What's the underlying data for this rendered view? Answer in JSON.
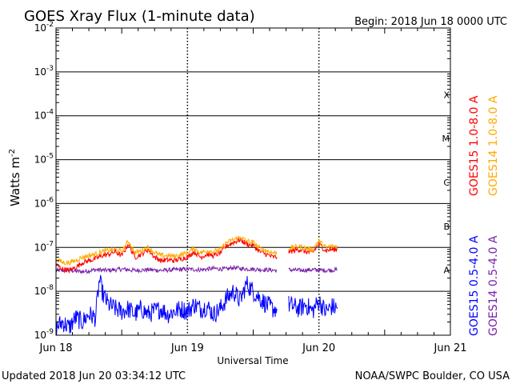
{
  "header": {
    "title": "GOES Xray Flux (1-minute data)",
    "begin": "Begin:  2018 Jun 18 0000 UTC"
  },
  "footer": {
    "updated": "Updated 2018 Jun 20 03:34:12 UTC",
    "credit": "NOAA/SWPC Boulder, CO USA"
  },
  "chart_data": {
    "type": "line",
    "title": "GOES Xray Flux (1-minute data)",
    "xlabel": "Universal Time",
    "ylabel": "Watts m",
    "ylabel_sup": "-2",
    "yscale": "log",
    "ylim": [
      1e-09,
      0.01
    ],
    "xlim": [
      0,
      3
    ],
    "x_units": "days since 2018 Jun 18 0000 UTC",
    "x_ticks": [
      {
        "x": 0,
        "label": "Jun 18"
      },
      {
        "x": 1,
        "label": "Jun 19"
      },
      {
        "x": 2,
        "label": "Jun 20"
      },
      {
        "x": 3,
        "label": "Jun 21"
      }
    ],
    "y_ticks": [
      {
        "exp": -9,
        "base": "10",
        "sup": "-9"
      },
      {
        "exp": -8,
        "base": "10",
        "sup": "-8"
      },
      {
        "exp": -7,
        "base": "10",
        "sup": "-7"
      },
      {
        "exp": -6,
        "base": "10",
        "sup": "-6"
      },
      {
        "exp": -5,
        "base": "10",
        "sup": "-5"
      },
      {
        "exp": -4,
        "base": "10",
        "sup": "-4"
      },
      {
        "exp": -3,
        "base": "10",
        "sup": "-3"
      },
      {
        "exp": -2,
        "base": "10",
        "sup": "-2"
      }
    ],
    "flare_classes": [
      {
        "label": "A",
        "exp": -8
      },
      {
        "label": "B",
        "exp": -7
      },
      {
        "label": "C",
        "exp": -6
      },
      {
        "label": "M",
        "exp": -5
      },
      {
        "label": "X",
        "exp": -4
      }
    ],
    "grid": "horizontal lines at each decade, dotted vertical lines at day boundaries",
    "legend_placement": "right, vertical",
    "series": [
      {
        "name": "GOES15 1.0-8.0 A",
        "color": "#ff0000",
        "points": [
          [
            0,
            4e-08
          ],
          [
            0.05,
            3.2e-08
          ],
          [
            0.1,
            3e-08
          ],
          [
            0.15,
            3.5e-08
          ],
          [
            0.2,
            4.5e-08
          ],
          [
            0.25,
            5e-08
          ],
          [
            0.3,
            5.5e-08
          ],
          [
            0.35,
            6.5e-08
          ],
          [
            0.4,
            7e-08
          ],
          [
            0.45,
            8e-08
          ],
          [
            0.5,
            6.5e-08
          ],
          [
            0.55,
            1.2e-07
          ],
          [
            0.6,
            6e-08
          ],
          [
            0.65,
            7e-08
          ],
          [
            0.7,
            9e-08
          ],
          [
            0.75,
            6e-08
          ],
          [
            0.8,
            5e-08
          ],
          [
            0.85,
            5.2e-08
          ],
          [
            0.9,
            5e-08
          ],
          [
            0.95,
            5.5e-08
          ],
          [
            1.0,
            6e-08
          ],
          [
            1.05,
            8e-08
          ],
          [
            1.1,
            6e-08
          ],
          [
            1.15,
            7e-08
          ],
          [
            1.2,
            6.5e-08
          ],
          [
            1.25,
            7.5e-08
          ],
          [
            1.3,
            1.1e-07
          ],
          [
            1.35,
            1.3e-07
          ],
          [
            1.4,
            1.5e-07
          ],
          [
            1.45,
            1.2e-07
          ],
          [
            1.5,
            1.1e-07
          ],
          [
            1.55,
            8e-08
          ],
          [
            1.6,
            7e-08
          ],
          [
            1.65,
            6e-08
          ],
          [
            1.68,
            6e-08
          ],
          [
            null,
            null
          ],
          [
            1.77,
            8e-08
          ],
          [
            1.85,
            9e-08
          ],
          [
            1.9,
            8e-08
          ],
          [
            1.95,
            7.5e-08
          ],
          [
            2.0,
            1.2e-07
          ],
          [
            2.05,
            8.5e-08
          ],
          [
            2.1,
            9e-08
          ],
          [
            2.14,
            9e-08
          ]
        ]
      },
      {
        "name": "GOES14 1.0-8.0 A",
        "color": "#ffaa00",
        "points": [
          [
            0,
            5.5e-08
          ],
          [
            0.05,
            4.5e-08
          ],
          [
            0.1,
            4.5e-08
          ],
          [
            0.15,
            5e-08
          ],
          [
            0.2,
            6e-08
          ],
          [
            0.25,
            6.5e-08
          ],
          [
            0.3,
            7e-08
          ],
          [
            0.35,
            8e-08
          ],
          [
            0.4,
            8.5e-08
          ],
          [
            0.45,
            9e-08
          ],
          [
            0.5,
            8e-08
          ],
          [
            0.55,
            1.4e-07
          ],
          [
            0.6,
            7.5e-08
          ],
          [
            0.65,
            8.5e-08
          ],
          [
            0.7,
            1e-07
          ],
          [
            0.75,
            7.5e-08
          ],
          [
            0.8,
            6.5e-08
          ],
          [
            0.85,
            6.5e-08
          ],
          [
            0.9,
            6.3e-08
          ],
          [
            0.95,
            6.8e-08
          ],
          [
            1.0,
            7.5e-08
          ],
          [
            1.05,
            9.5e-08
          ],
          [
            1.1,
            7.5e-08
          ],
          [
            1.15,
            8.5e-08
          ],
          [
            1.2,
            8e-08
          ],
          [
            1.25,
            9e-08
          ],
          [
            1.3,
            1.3e-07
          ],
          [
            1.35,
            1.5e-07
          ],
          [
            1.4,
            1.7e-07
          ],
          [
            1.45,
            1.4e-07
          ],
          [
            1.5,
            1.3e-07
          ],
          [
            1.55,
            9.5e-08
          ],
          [
            1.6,
            8.5e-08
          ],
          [
            1.65,
            7.5e-08
          ],
          [
            1.68,
            7.5e-08
          ],
          [
            null,
            null
          ],
          [
            1.77,
            9.5e-08
          ],
          [
            1.85,
            1.05e-07
          ],
          [
            1.9,
            9.5e-08
          ],
          [
            1.95,
            9e-08
          ],
          [
            2.0,
            1.4e-07
          ],
          [
            2.05,
            1e-07
          ],
          [
            2.1,
            1.05e-07
          ],
          [
            2.14,
            1.05e-07
          ]
        ]
      },
      {
        "name": "GOES15 0.5-4.0 A",
        "color": "#0000ff",
        "points": [
          [
            0,
            1.5e-09
          ],
          [
            0.05,
            2e-09
          ],
          [
            0.1,
            1.5e-09
          ],
          [
            0.15,
            2.5e-09
          ],
          [
            0.2,
            2e-09
          ],
          [
            0.25,
            3e-09
          ],
          [
            0.3,
            2.5e-09
          ],
          [
            0.33,
            1.8e-08
          ],
          [
            0.36,
            8e-09
          ],
          [
            0.4,
            5e-09
          ],
          [
            0.45,
            4e-09
          ],
          [
            0.5,
            3.5e-09
          ],
          [
            0.55,
            4e-09
          ],
          [
            0.6,
            3e-09
          ],
          [
            0.65,
            4e-09
          ],
          [
            0.7,
            3e-09
          ],
          [
            0.75,
            3.5e-09
          ],
          [
            0.8,
            4e-09
          ],
          [
            0.85,
            3e-09
          ],
          [
            0.9,
            3.5e-09
          ],
          [
            0.95,
            4e-09
          ],
          [
            1.0,
            3.5e-09
          ],
          [
            1.05,
            5e-09
          ],
          [
            1.1,
            4e-09
          ],
          [
            1.15,
            4.5e-09
          ],
          [
            1.2,
            3e-09
          ],
          [
            1.25,
            4e-09
          ],
          [
            1.3,
            7e-09
          ],
          [
            1.35,
            1e-08
          ],
          [
            1.4,
            6e-09
          ],
          [
            1.45,
            1.5e-08
          ],
          [
            1.5,
            1e-08
          ],
          [
            1.55,
            7e-09
          ],
          [
            1.6,
            5e-09
          ],
          [
            1.65,
            4e-09
          ],
          [
            1.68,
            4e-09
          ],
          [
            null,
            null
          ],
          [
            1.77,
            5e-09
          ],
          [
            1.85,
            4e-09
          ],
          [
            1.9,
            5e-09
          ],
          [
            1.95,
            3.5e-09
          ],
          [
            2.0,
            6e-09
          ],
          [
            2.05,
            3.5e-09
          ],
          [
            2.1,
            4.5e-09
          ],
          [
            2.14,
            4e-09
          ]
        ]
      },
      {
        "name": "GOES14 0.5-4.0 A",
        "color": "#7722aa",
        "points": [
          [
            0,
            3e-08
          ],
          [
            0.1,
            3e-08
          ],
          [
            0.2,
            2.8e-08
          ],
          [
            0.3,
            3.1e-08
          ],
          [
            0.4,
            3e-08
          ],
          [
            0.5,
            3.2e-08
          ],
          [
            0.6,
            3e-08
          ],
          [
            0.7,
            3.1e-08
          ],
          [
            0.8,
            3e-08
          ],
          [
            0.9,
            3.1e-08
          ],
          [
            1.0,
            3.2e-08
          ],
          [
            1.1,
            3.1e-08
          ],
          [
            1.2,
            3.3e-08
          ],
          [
            1.3,
            3.2e-08
          ],
          [
            1.35,
            3.5e-08
          ],
          [
            1.4,
            3.3e-08
          ],
          [
            1.5,
            3.2e-08
          ],
          [
            1.6,
            3.1e-08
          ],
          [
            1.68,
            3e-08
          ],
          [
            null,
            null
          ],
          [
            1.77,
            3.1e-08
          ],
          [
            1.85,
            3e-08
          ],
          [
            1.95,
            3.1e-08
          ],
          [
            2.05,
            3e-08
          ],
          [
            2.14,
            3.1e-08
          ]
        ]
      }
    ]
  }
}
